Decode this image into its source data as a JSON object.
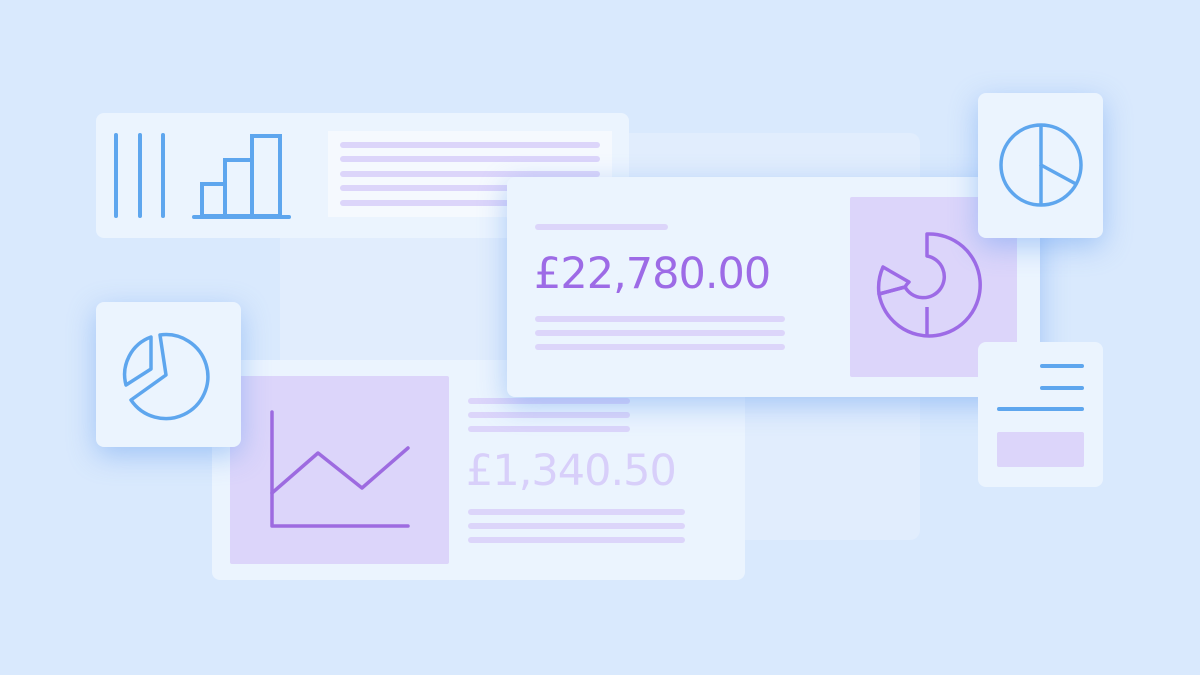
{
  "main_card": {
    "amount": "£22,780.00",
    "icon": "donut-chart-icon"
  },
  "secondary_card": {
    "amount": "£1,340.50",
    "icon": "line-chart-icon"
  },
  "top_card": {
    "icons": [
      "vertical-bars-icon",
      "bar-chart-icon"
    ]
  },
  "colors": {
    "background": "#d9e9fd",
    "card": "#ebf4fe",
    "accent_purple": "#9d6be6",
    "accent_blue": "#5ea6ee",
    "placeholder": "#dcd5fa"
  }
}
